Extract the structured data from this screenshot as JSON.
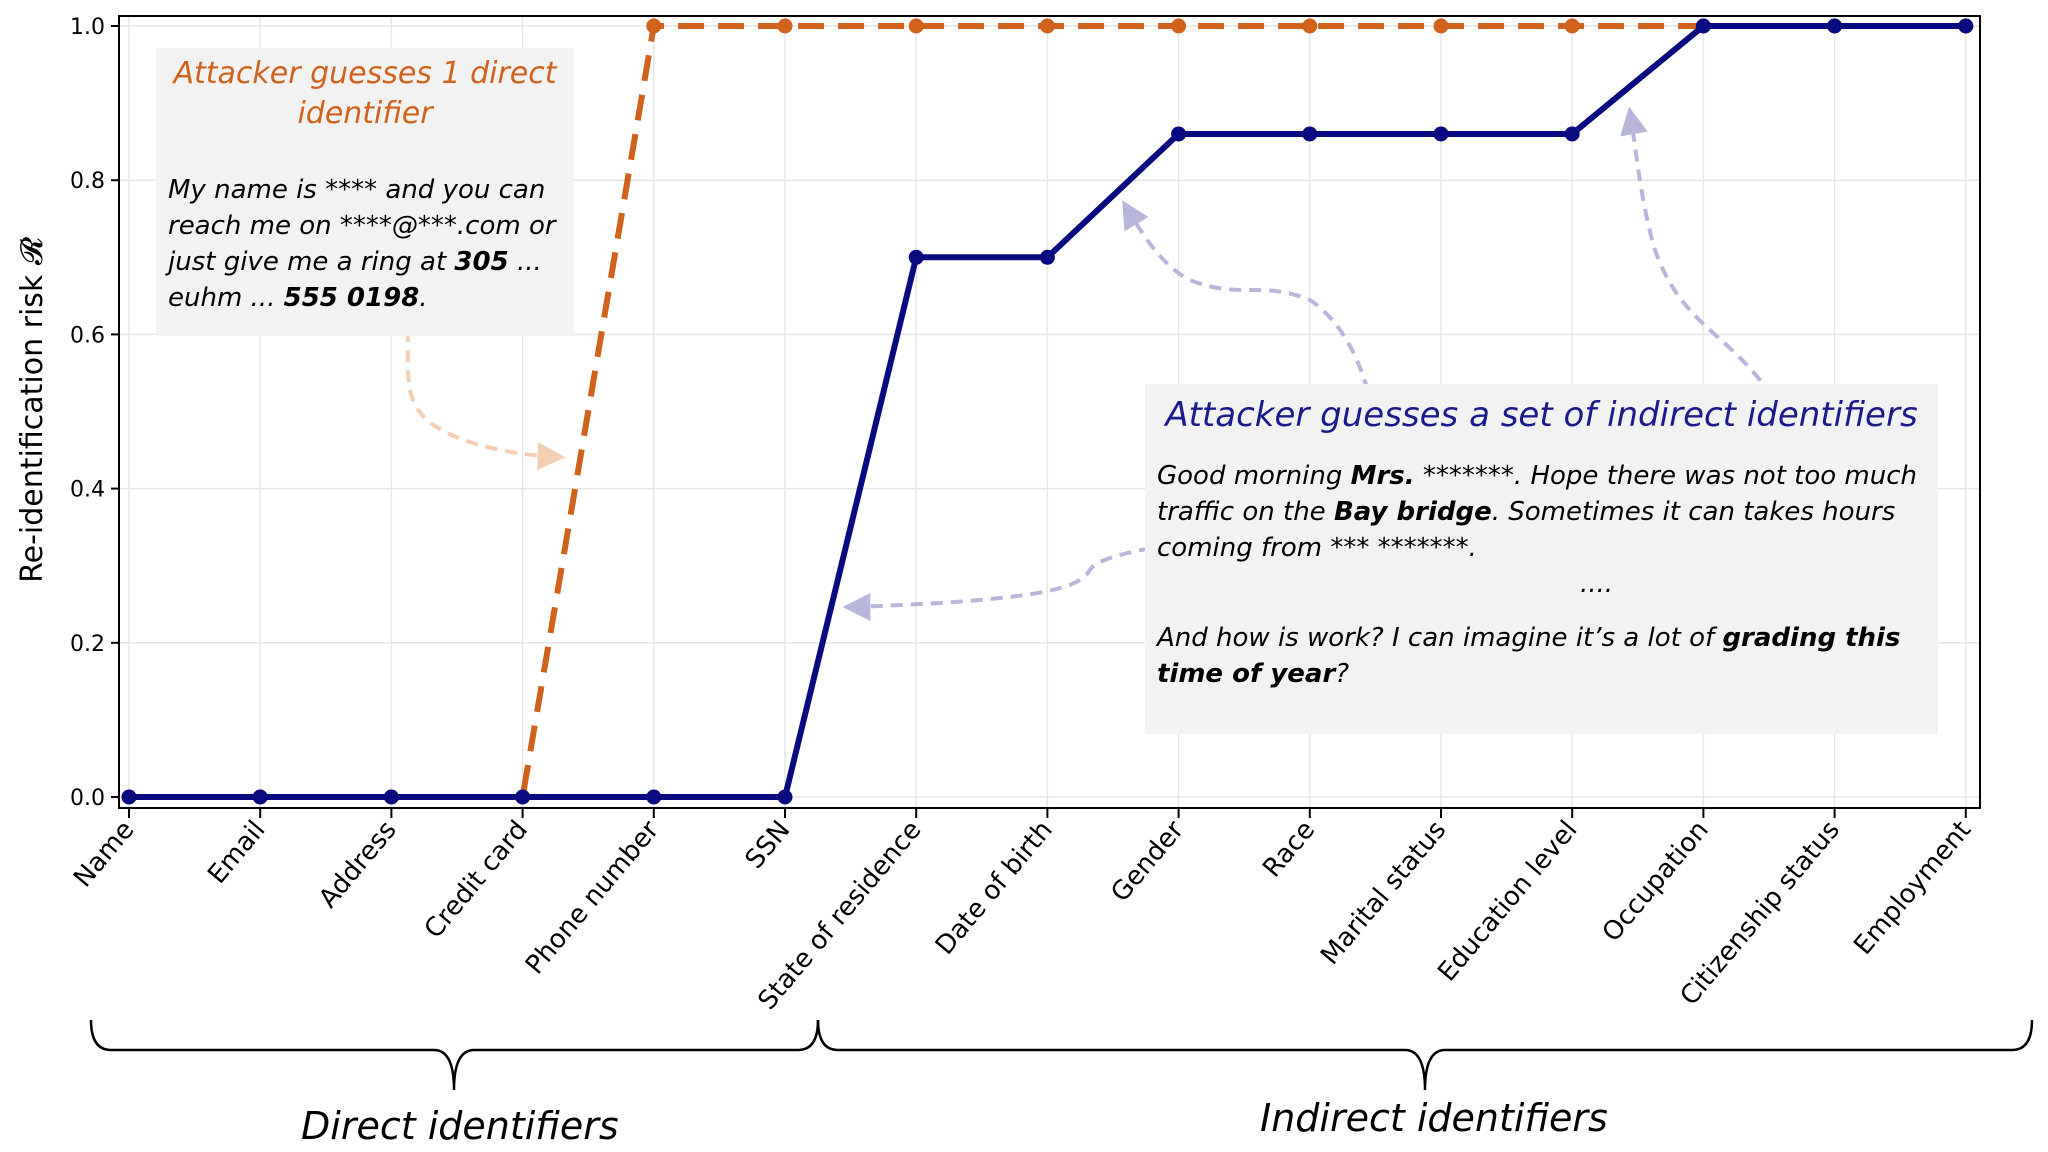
{
  "chart_data": {
    "type": "line",
    "ylabel": "Re-identification risk 𝓡",
    "ylim": [
      0,
      1.0
    ],
    "yticks": [
      "0.0",
      "0.2",
      "0.4",
      "0.6",
      "0.8",
      "1.0"
    ],
    "grid": true,
    "categories": [
      "Name",
      "Email",
      "Address",
      "Credit card",
      "Phone number",
      "SSN",
      "State of residence",
      "Date of birth",
      "Gender",
      "Race",
      "Marital status",
      "Education level",
      "Occupation",
      "Citizenship status",
      "Employment"
    ],
    "series": [
      {
        "key": "direct",
        "color": "#d0621c",
        "style": "dashed",
        "values": [
          0,
          0,
          0,
          0,
          1.0,
          1.0,
          1.0,
          1.0,
          1.0,
          1.0,
          1.0,
          1.0,
          1.0,
          1.0,
          1.0
        ]
      },
      {
        "key": "indirect",
        "color": "#0a0a80",
        "style": "solid",
        "values": [
          0,
          0,
          0,
          0,
          0,
          0,
          0.7,
          0.7,
          0.86,
          0.86,
          0.86,
          0.86,
          1.0,
          1.0,
          1.0
        ]
      }
    ],
    "groups": [
      {
        "label": "Direct identifiers",
        "from": "Name",
        "to": "SSN"
      },
      {
        "label": "Indirect identifiers",
        "from": "State of residence",
        "to": "Employment"
      }
    ]
  },
  "annotations": {
    "direct": {
      "title": "Attacker guesses 1 direct identifier",
      "body_parts": [
        {
          "text": "My name is **** and you can reach me on ****@***.com or just give me a ring at ",
          "bold": false
        },
        {
          "text": "305",
          "bold": true
        },
        {
          "text": " ... euhm ... ",
          "bold": false
        },
        {
          "text": "555 0198",
          "bold": true
        },
        {
          "text": ".",
          "bold": false
        }
      ]
    },
    "indirect": {
      "title": "Attacker guesses a set of indirect identifiers",
      "body_parts": [
        {
          "text": "Good morning ",
          "bold": false
        },
        {
          "text": "Mrs.",
          "bold": true
        },
        {
          "text": " *******. Hope there was not too much traffic on the ",
          "bold": false
        },
        {
          "text": "Bay bridge",
          "bold": true
        },
        {
          "text": ". Sometimes it can takes hours coming from *** *******.",
          "bold": false
        }
      ],
      "ellipsis": "....",
      "body2_parts": [
        {
          "text": "And how is work? I can imagine it’s a lot of ",
          "bold": false
        },
        {
          "text": "grading this time of year",
          "bold": true
        },
        {
          "text": "?",
          "bold": false
        }
      ]
    }
  }
}
